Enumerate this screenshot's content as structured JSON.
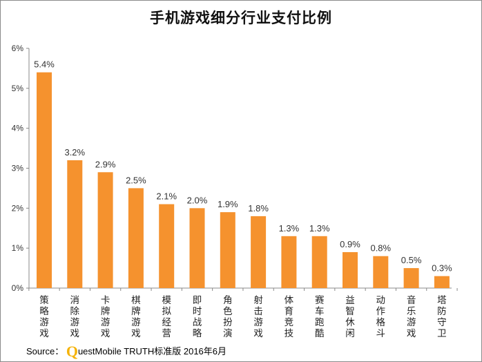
{
  "title": "手机游戏细分行业支付比例",
  "source": {
    "prefix": "Source：",
    "logo_letter": "Q",
    "text": "uestMobile TRUTH标准版 2016年6月"
  },
  "colors": {
    "bar": "#f5922e",
    "axis": "#888888",
    "tick_text": "#333333"
  },
  "chart_data": {
    "type": "bar",
    "title": "手机游戏细分行业支付比例",
    "xlabel": "",
    "ylabel": "",
    "ylim": [
      0,
      6
    ],
    "yticks": [
      0,
      1,
      2,
      3,
      4,
      5,
      6
    ],
    "ytick_labels": [
      "0%",
      "1%",
      "2%",
      "3%",
      "4%",
      "5%",
      "6%"
    ],
    "grid": false,
    "legend": "none",
    "categories": [
      "策略游戏",
      "消除游戏",
      "卡牌游戏",
      "棋牌游戏",
      "模拟经营",
      "即时战略",
      "角色扮演",
      "射击游戏",
      "体育竞技",
      "赛车跑酷",
      "益智休闲",
      "动作格斗",
      "音乐游戏",
      "塔防守卫"
    ],
    "values": [
      5.4,
      3.2,
      2.9,
      2.5,
      2.1,
      2.0,
      1.9,
      1.8,
      1.3,
      1.3,
      0.9,
      0.8,
      0.5,
      0.3
    ],
    "value_labels": [
      "5.4%",
      "3.2%",
      "2.9%",
      "2.5%",
      "2.1%",
      "2.0%",
      "1.9%",
      "1.8%",
      "1.3%",
      "1.3%",
      "0.9%",
      "0.8%",
      "0.5%",
      "0.3%"
    ]
  }
}
